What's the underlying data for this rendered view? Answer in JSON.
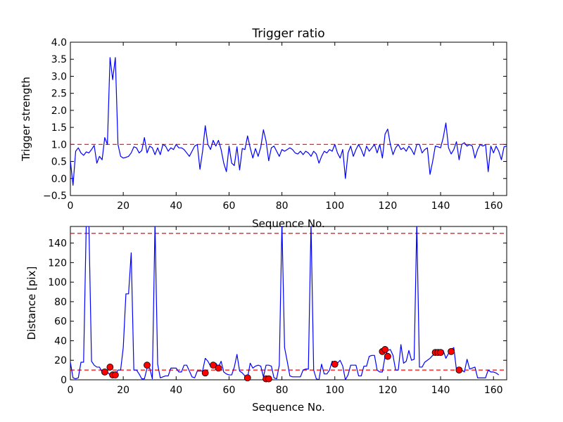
{
  "chart_data": [
    {
      "type": "line",
      "title": "Trigger ratio",
      "xlabel": "Sequence No.",
      "ylabel": "Trigger strength",
      "xlim": [
        0,
        165
      ],
      "ylim": [
        -0.5,
        4.0
      ],
      "xticks": [
        "0",
        "20",
        "40",
        "60",
        "80",
        "100",
        "120",
        "140",
        "160"
      ],
      "yticks": [
        "−0.5",
        "0.0",
        "0.5",
        "1.0",
        "1.5",
        "2.0",
        "2.5",
        "3.0",
        "3.5",
        "4.0"
      ],
      "line_color": "#0000ff",
      "threshold_color": "#ff0000",
      "thresholds": [
        1.0
      ],
      "values": [
        0.52,
        -0.2,
        0.8,
        0.9,
        0.75,
        0.68,
        0.78,
        0.75,
        0.85,
        0.97,
        0.45,
        0.65,
        0.55,
        1.2,
        1.0,
        3.55,
        2.9,
        3.55,
        1.0,
        0.65,
        0.6,
        0.62,
        0.65,
        0.75,
        0.93,
        0.9,
        0.75,
        0.82,
        1.2,
        0.75,
        0.95,
        0.9,
        0.7,
        0.9,
        0.7,
        1.0,
        0.95,
        0.8,
        0.9,
        0.85,
        1.0,
        0.9,
        0.9,
        0.85,
        0.75,
        0.65,
        0.8,
        0.95,
        1.0,
        0.27,
        0.8,
        1.55,
        1.0,
        0.85,
        1.12,
        0.95,
        1.12,
        0.85,
        0.45,
        0.2,
        0.95,
        0.45,
        0.38,
        0.93,
        0.25,
        0.88,
        0.85,
        1.25,
        0.9,
        0.6,
        0.88,
        0.65,
        0.92,
        1.43,
        1.1,
        0.52,
        0.9,
        0.95,
        0.8,
        0.65,
        0.85,
        0.8,
        0.85,
        0.9,
        0.85,
        0.75,
        0.72,
        0.8,
        0.7,
        0.8,
        0.75,
        0.65,
        0.8,
        0.72,
        0.45,
        0.65,
        0.8,
        0.75,
        0.85,
        0.8,
        1.0,
        0.75,
        0.6,
        0.85,
        0.0,
        0.75,
        0.95,
        0.65,
        0.85,
        1.0,
        0.85,
        0.65,
        0.95,
        0.8,
        0.9,
        1.0,
        0.75,
        1.0,
        0.6,
        1.3,
        1.45,
        1.0,
        0.7,
        0.9,
        1.0,
        0.85,
        0.9,
        0.8,
        0.95,
        0.85,
        0.7,
        1.0,
        1.0,
        0.75,
        0.85,
        0.9,
        0.12,
        0.5,
        0.95,
        0.93,
        0.9,
        1.2,
        1.63,
        0.9,
        0.72,
        0.85,
        1.08,
        0.55,
        1.0,
        1.05,
        0.95,
        1.0,
        0.95,
        0.6,
        0.85,
        1.0,
        0.95,
        1.0,
        0.2,
        0.95,
        0.75,
        0.95,
        0.8,
        0.55,
        0.93,
        0.95,
        0.85
      ]
    },
    {
      "type": "line",
      "xlabel": "Sequence No.",
      "ylabel": "Distance [pix]",
      "xlim": [
        0,
        165
      ],
      "ylim": [
        0,
        157
      ],
      "xticks": [
        "0",
        "20",
        "40",
        "60",
        "80",
        "100",
        "120",
        "140",
        "160"
      ],
      "yticks": [
        "0",
        "20",
        "40",
        "60",
        "80",
        "100",
        "120",
        "140"
      ],
      "line_color": "#0000ff",
      "threshold_color": "#ff0000",
      "marker_color": "#ff0000",
      "thresholds": [
        150,
        10
      ],
      "values": [
        18,
        2,
        1,
        2,
        18,
        18,
        160,
        160,
        19,
        15,
        13,
        13,
        8,
        10,
        8,
        5,
        5,
        5,
        10,
        10,
        33,
        88,
        88,
        130,
        10,
        10,
        6,
        1,
        1,
        12,
        12,
        1,
        160,
        16,
        2,
        3,
        4,
        4,
        12,
        12,
        12,
        8,
        8,
        15,
        15,
        9,
        3,
        2,
        9,
        9,
        9,
        22,
        19,
        14,
        13,
        17,
        13,
        19,
        8,
        6,
        5,
        5,
        13,
        26,
        9,
        7,
        4,
        2,
        17,
        12,
        14,
        15,
        14,
        3,
        15,
        15,
        14,
        2,
        1,
        15,
        160,
        33,
        19,
        4,
        3,
        3,
        3,
        3,
        10,
        11,
        11,
        160,
        10,
        1,
        0,
        16,
        6,
        6,
        10,
        19,
        18,
        17,
        20,
        14,
        0,
        5,
        15,
        15,
        15,
        4,
        4,
        14,
        14,
        24,
        25,
        25,
        10,
        8,
        8,
        24,
        30,
        31,
        25,
        10,
        10,
        36,
        17,
        19,
        30,
        20,
        21,
        160,
        13,
        13,
        18,
        20,
        22,
        25,
        26,
        28,
        29,
        30,
        22,
        27,
        31,
        33,
        10,
        10,
        10,
        8,
        21,
        11,
        12,
        13,
        2,
        2,
        2,
        2,
        10,
        8,
        8,
        7,
        5
      ],
      "markers": [
        {
          "x": 13,
          "y": 8
        },
        {
          "x": 15,
          "y": 13
        },
        {
          "x": 16,
          "y": 5
        },
        {
          "x": 17,
          "y": 5
        },
        {
          "x": 29,
          "y": 15
        },
        {
          "x": 51,
          "y": 7
        },
        {
          "x": 54,
          "y": 15
        },
        {
          "x": 56,
          "y": 12
        },
        {
          "x": 67,
          "y": 2
        },
        {
          "x": 74,
          "y": 1
        },
        {
          "x": 75,
          "y": 1
        },
        {
          "x": 100,
          "y": 16
        },
        {
          "x": 118,
          "y": 29
        },
        {
          "x": 119,
          "y": 31
        },
        {
          "x": 120,
          "y": 24
        },
        {
          "x": 138,
          "y": 28
        },
        {
          "x": 139,
          "y": 28
        },
        {
          "x": 140,
          "y": 28
        },
        {
          "x": 144,
          "y": 29
        },
        {
          "x": 147,
          "y": 10
        }
      ]
    }
  ]
}
